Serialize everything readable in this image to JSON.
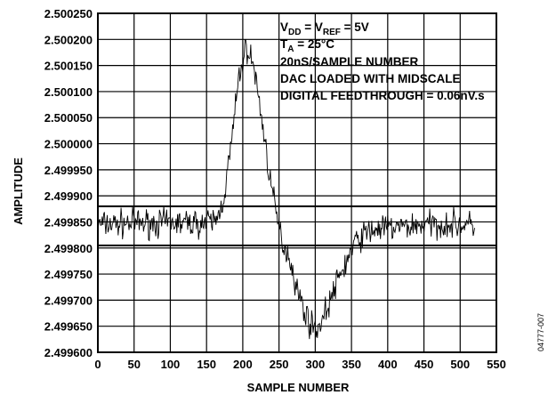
{
  "chart_data": {
    "type": "line",
    "xlabel": "SAMPLE NUMBER",
    "ylabel": "AMPLITUDE",
    "xlim": [
      0,
      550
    ],
    "ylim": [
      2.4996,
      2.50025
    ],
    "x_ticks": [
      "0",
      "50",
      "100",
      "150",
      "200",
      "250",
      "300",
      "350",
      "400",
      "450",
      "500",
      "550"
    ],
    "y_ticks": [
      "2.499600",
      "2.499650",
      "2.499700",
      "2.499750",
      "2.499800",
      "2.499850",
      "2.499900",
      "2.499950",
      "2.500000",
      "2.500050",
      "2.500100",
      "2.500150",
      "2.500200",
      "2.500250"
    ],
    "grid": true,
    "annotations": {
      "line1": {
        "a": "V",
        "a_sub": "DD",
        "b": " = V",
        "b_sub": "REF",
        "c": " = 5V"
      },
      "line2": {
        "a": "T",
        "a_sub": "A",
        "b": " = 25°C"
      },
      "line3": "20nS/SAMPLE NUMBER",
      "line4": "DAC LOADED WITH MIDSCALE",
      "line5": "DIGITAL FEEDTHROUGH = 0.06nV.s"
    },
    "figure_id": "04777-007",
    "series": [
      {
        "color": "#000000",
        "envelope": [
          [
            0,
            2.499845
          ],
          [
            50,
            2.499848
          ],
          [
            100,
            2.499848
          ],
          [
            150,
            2.499848
          ],
          [
            165,
            2.499855
          ],
          [
            175,
            2.499905
          ],
          [
            185,
            2.50001
          ],
          [
            195,
            2.50013
          ],
          [
            205,
            2.500185
          ],
          [
            215,
            2.50015
          ],
          [
            225,
            2.50006
          ],
          [
            235,
            2.49996
          ],
          [
            245,
            2.49987
          ],
          [
            255,
            2.49981
          ],
          [
            265,
            2.49978
          ],
          [
            275,
            2.49972
          ],
          [
            285,
            2.49968
          ],
          [
            295,
            2.49965
          ],
          [
            305,
            2.499648
          ],
          [
            315,
            2.49968
          ],
          [
            325,
            2.499715
          ],
          [
            335,
            2.49975
          ],
          [
            345,
            2.49978
          ],
          [
            355,
            2.49981
          ],
          [
            370,
            2.49983
          ],
          [
            390,
            2.499838
          ],
          [
            420,
            2.49984
          ],
          [
            450,
            2.499845
          ],
          [
            480,
            2.499845
          ],
          [
            500,
            2.499845
          ],
          [
            520,
            2.499843
          ]
        ],
        "noise_amplitude": 2e-05,
        "sample_count": 521
      }
    ],
    "reference_lines": [
      2.49988,
      2.499805
    ]
  }
}
